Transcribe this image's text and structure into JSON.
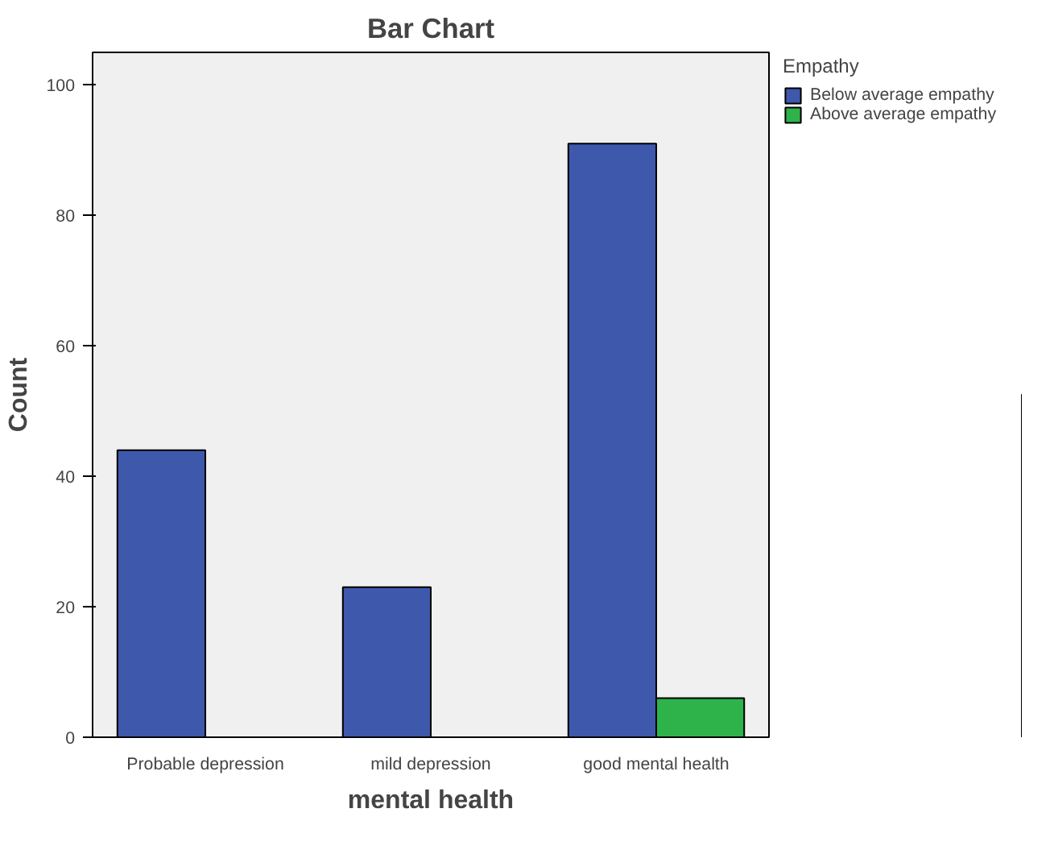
{
  "chart_data": {
    "type": "bar",
    "title": "Bar Chart",
    "xlabel": "mental health",
    "ylabel": "Count",
    "legend_title": "Empathy",
    "categories": [
      "Probable depression",
      "mild depression",
      "good mental health"
    ],
    "series": [
      {
        "name": "Below average empathy",
        "color": "#3e58ac",
        "values": [
          44,
          23,
          91
        ]
      },
      {
        "name": "Above average empathy",
        "color": "#2db34a",
        "values": [
          null,
          null,
          6
        ]
      }
    ],
    "ylim": [
      0,
      105
    ],
    "yticks": [
      0,
      20,
      40,
      60,
      80,
      100
    ],
    "grid": false,
    "legend": "right"
  }
}
